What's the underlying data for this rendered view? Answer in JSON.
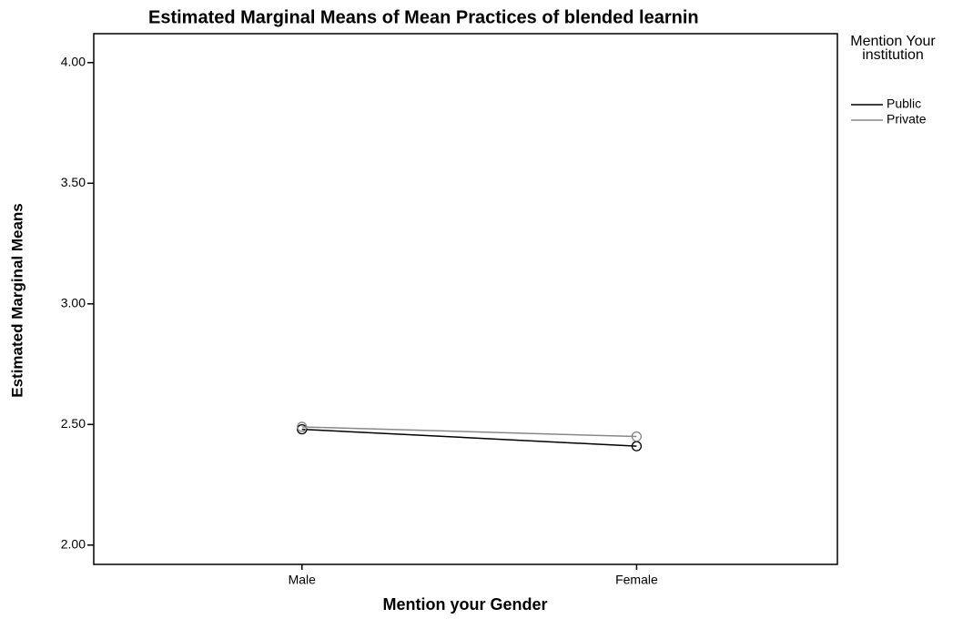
{
  "chart_data": {
    "type": "line",
    "title": "Estimated Marginal Means of Mean Practices of blended learnin",
    "x_label": "Mention your Gender",
    "y_label": "Estimated Marginal Means",
    "legend_title": "Mention Your institution",
    "categories": [
      "Male",
      "Female"
    ],
    "series": [
      {
        "name": "Public",
        "color": "#000000",
        "values": [
          2.48,
          2.41
        ]
      },
      {
        "name": "Private",
        "color": "#888888",
        "values": [
          2.49,
          2.45
        ]
      }
    ],
    "ylim": [
      1.92,
      4.12
    ],
    "yticks": [
      {
        "value": 2,
        "label": "2.00"
      },
      {
        "value": 2.5,
        "label": "2.50"
      },
      {
        "value": 3,
        "label": "3.00"
      },
      {
        "value": 3.5,
        "label": "3.50"
      },
      {
        "value": 4,
        "label": "4.00"
      }
    ],
    "legend_position": "right"
  }
}
